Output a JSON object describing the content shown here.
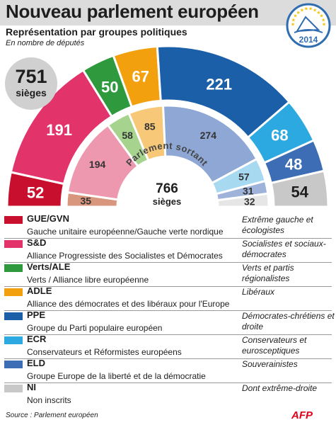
{
  "header": {
    "title": "Nouveau parlement européen",
    "subtitle": "Représentation par groupes politiques",
    "unit_note": "En nombre de députés",
    "logo_year": "2014"
  },
  "chart_data": [
    {
      "type": "pie",
      "variant": "hemicycle",
      "layer": "outer",
      "caption": "Nouveau parlement",
      "total_value": "751",
      "total_label": "sièges",
      "categories": [
        "GUE/GVN",
        "S&D",
        "Verts/ALE",
        "ADLE",
        "PPE",
        "ECR",
        "ELD",
        "NI"
      ],
      "values": [
        52,
        191,
        50,
        67,
        221,
        68,
        48,
        54
      ],
      "colors": [
        "#c8102e",
        "#e2336b",
        "#2e9a3d",
        "#f2a00e",
        "#1b5fa8",
        "#2ba9e0",
        "#3d6db5",
        "#c8c8c8"
      ]
    },
    {
      "type": "pie",
      "variant": "hemicycle",
      "layer": "inner",
      "caption": "Parlement sortant",
      "total_value": "766",
      "total_label": "sièges",
      "categories": [
        "GUE/GVN",
        "S&D",
        "Verts/ALE",
        "ADLE",
        "PPE",
        "ECR",
        "ELD",
        "NI"
      ],
      "values": [
        35,
        194,
        58,
        85,
        274,
        57,
        31,
        32
      ],
      "colors": [
        "#d8967e",
        "#ed98ae",
        "#a6d38e",
        "#f7c877",
        "#8ea7d5",
        "#a7d9f1",
        "#9fb2da",
        "#e6e6e6"
      ]
    }
  ],
  "legend": [
    {
      "code": "GUE/GVN",
      "full": "Gauche unitaire européenne/Gauche verte nordique",
      "desc": "Extrême gauche et écologistes",
      "color": "#c8102e"
    },
    {
      "code": "S&D",
      "full": "Alliance Progressiste des Socialistes et Démocrates",
      "desc": "Socialistes et sociaux-démocrates",
      "color": "#e2336b"
    },
    {
      "code": "Verts/ALE",
      "full": "Verts / Alliance libre européenne",
      "desc": "Verts et partis régionalistes",
      "color": "#2e9a3d"
    },
    {
      "code": "ADLE",
      "full": "Alliance des démocrates et des libéraux pour l'Europe",
      "desc": "Libéraux",
      "color": "#f2a00e"
    },
    {
      "code": "PPE",
      "full": "Groupe du Parti populaire européen",
      "desc": "Démocrates-chrétiens et droite",
      "color": "#1b5fa8"
    },
    {
      "code": "ECR",
      "full": "Conservateurs et Réformistes européens",
      "desc": "Conservateurs et eurosceptiques",
      "color": "#2ba9e0"
    },
    {
      "code": "ELD",
      "full": "Groupe Europe de la liberté et de la démocratie",
      "desc": "Souverainistes",
      "color": "#3d6db5"
    },
    {
      "code": "NI",
      "full": "Non inscrits",
      "desc": "Dont extrême-droite",
      "color": "#c8c8c8"
    }
  ],
  "footer": {
    "source": "Source : Parlement européen",
    "agency": "AFP"
  }
}
